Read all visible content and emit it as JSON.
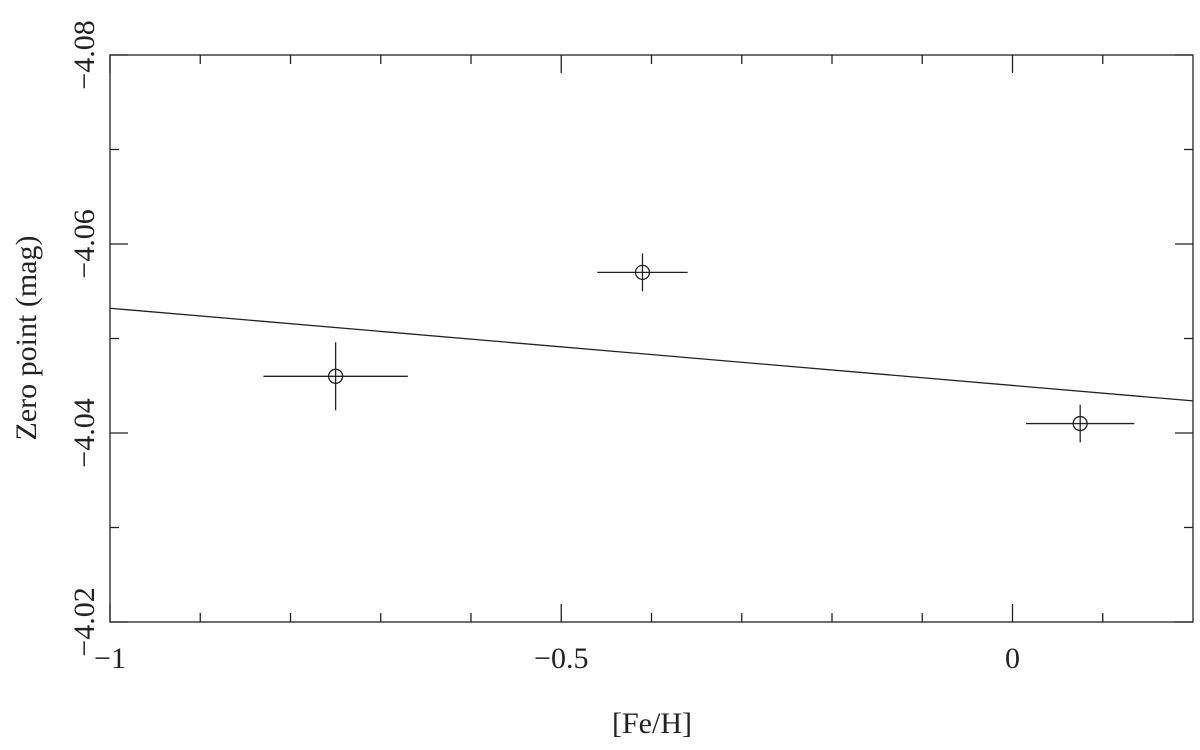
{
  "chart_data": {
    "type": "scatter",
    "x_label": "[Fe/H]",
    "y_label": "Zero point (mag)",
    "xlim": [
      -1,
      0.2
    ],
    "ylim": [
      -4.02,
      -4.08
    ],
    "xticks": [
      {
        "value": -1,
        "label": "−1"
      },
      {
        "value": -0.5,
        "label": "−0.5"
      },
      0
    ],
    "yticks": [
      {
        "value": -4.08,
        "label": "−4.08"
      },
      {
        "value": -4.06,
        "label": "−4.06"
      },
      {
        "value": -4.04,
        "label": "−4.04"
      },
      {
        "value": -4.02,
        "label": "−4.02"
      }
    ],
    "xminorticks": [
      -0.9,
      -0.8,
      -0.7,
      -0.6,
      -0.4,
      -0.3,
      -0.2,
      -0.1,
      0.1
    ],
    "yminorticks": [
      -4.07,
      -4.05,
      -4.03
    ],
    "color": "#222222",
    "points": {
      "x": [
        -0.75,
        -0.41,
        0.075
      ],
      "values": [
        -4.046,
        -4.057,
        -4.041
      ],
      "xerr": [
        0.08,
        0.05,
        0.06
      ],
      "yerr": [
        0.0036,
        0.002,
        0.002
      ]
    },
    "line": {
      "x": [
        -1,
        0.2
      ],
      "values": [
        -4.0532,
        -4.0434
      ]
    }
  }
}
